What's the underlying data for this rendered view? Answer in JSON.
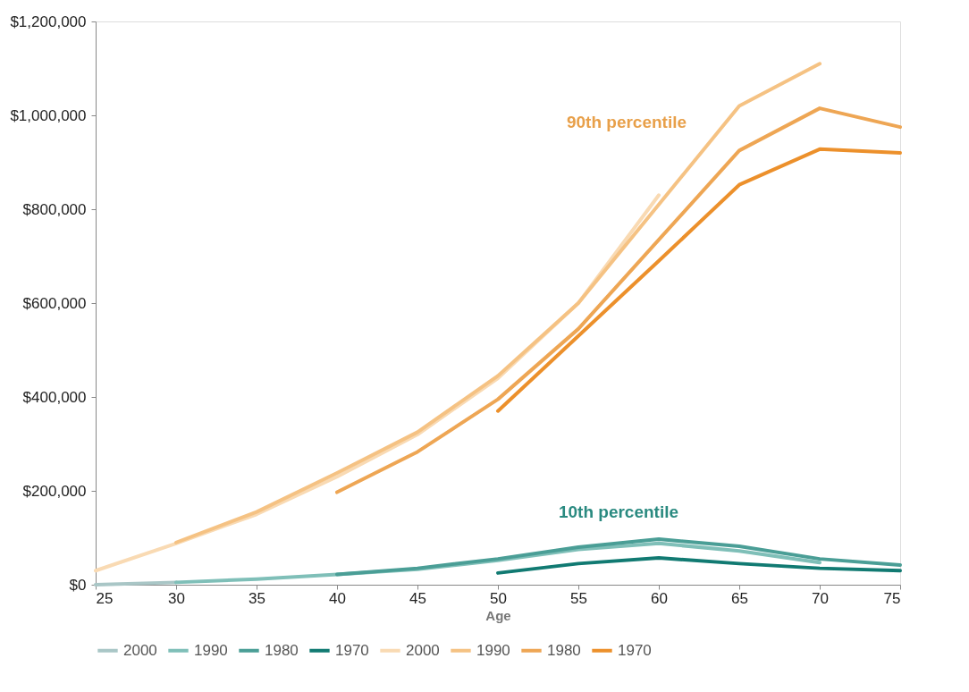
{
  "chart_data": {
    "type": "line",
    "xlabel": "Age",
    "x": [
      25,
      30,
      35,
      40,
      45,
      50,
      55,
      60,
      65,
      70,
      75
    ],
    "xlim": [
      25,
      75
    ],
    "xticks": [
      25,
      30,
      35,
      40,
      45,
      50,
      55,
      60,
      65,
      70,
      75
    ],
    "ylim": [
      0,
      1200000
    ],
    "yticks": [
      {
        "value": 0,
        "label": "$0"
      },
      {
        "value": 200000,
        "label": "$200,000"
      },
      {
        "value": 400000,
        "label": "$400,000"
      },
      {
        "value": 600000,
        "label": "$600,000"
      },
      {
        "value": 800000,
        "label": "$800,000"
      },
      {
        "value": 1000000,
        "label": "$1,000,000"
      },
      {
        "value": 1200000,
        "label": "$1,200,000"
      }
    ],
    "grid": false,
    "legend": "bottom",
    "line_style": "solid",
    "marker": "none",
    "series": [
      {
        "name": "2000",
        "color": "#a9c6c6",
        "values": [
          0,
          5000,
          null,
          null,
          null,
          null,
          null,
          null,
          null,
          null,
          null
        ]
      },
      {
        "name": "1990",
        "color": "#7fbfb8",
        "values": [
          null,
          5000,
          12000,
          22000,
          33000,
          52000,
          75000,
          88000,
          72000,
          47000,
          null
        ]
      },
      {
        "name": "1980",
        "color": "#4a9e96",
        "values": [
          null,
          null,
          null,
          22000,
          35000,
          55000,
          80000,
          97000,
          82000,
          55000,
          42000
        ]
      },
      {
        "name": "1970",
        "color": "#117a72",
        "values": [
          null,
          null,
          null,
          null,
          null,
          25000,
          45000,
          57000,
          45000,
          35000,
          30000
        ]
      },
      {
        "name": "2000",
        "color": "#f9dab3",
        "values": [
          30000,
          88000,
          150000,
          230000,
          320000,
          440000,
          600000,
          830000,
          null,
          null,
          null
        ]
      },
      {
        "name": "1990",
        "color": "#f5c283",
        "values": [
          null,
          90000,
          155000,
          238000,
          325000,
          445000,
          600000,
          810000,
          1020000,
          1110000,
          null
        ]
      },
      {
        "name": "1980",
        "color": "#eea654",
        "values": [
          null,
          null,
          null,
          197000,
          283000,
          395000,
          545000,
          735000,
          925000,
          1015000,
          975000
        ]
      },
      {
        "name": "1970",
        "color": "#ec902b",
        "values": [
          null,
          null,
          null,
          null,
          null,
          370000,
          530000,
          690000,
          852000,
          928000,
          920000
        ]
      }
    ],
    "annotations": [
      "90th percentile",
      "10th percentile"
    ]
  }
}
